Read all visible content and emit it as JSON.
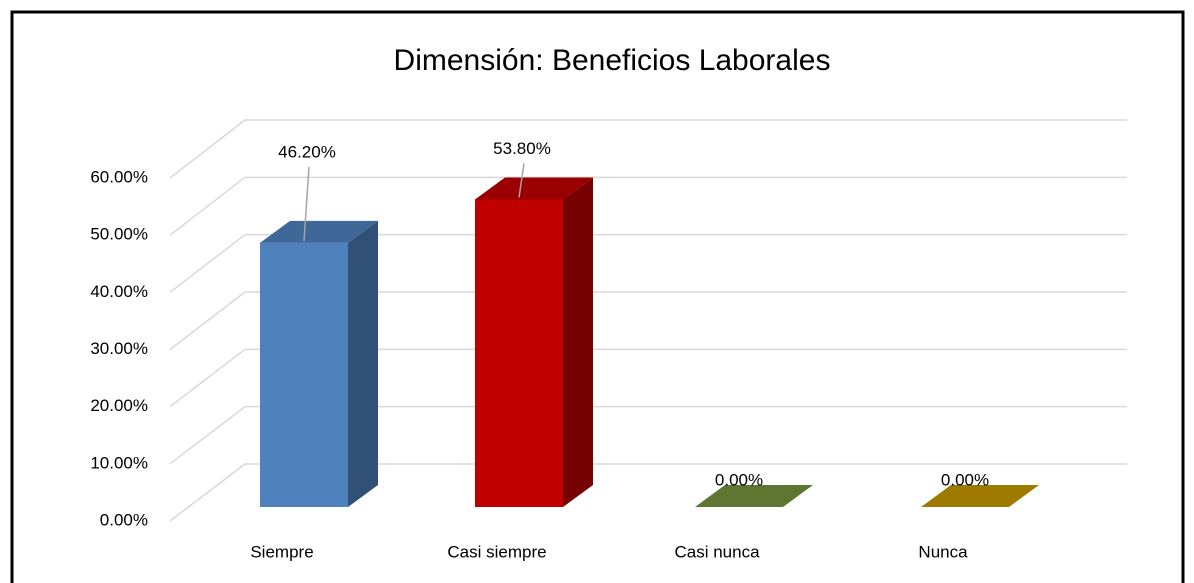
{
  "chart_data": {
    "type": "bar3d",
    "title": "Dimensión: Beneficios Laborales",
    "categories": [
      "Siempre",
      "Casi siempre",
      "Casi nunca",
      "Nunca"
    ],
    "values": [
      46.2,
      53.8,
      0,
      0
    ],
    "value_labels": [
      "46.20%",
      "53.80%",
      "0.00%",
      "0.00%"
    ],
    "colors": [
      "#4f81bd",
      "#c00000",
      "#77933c",
      "#c59a00"
    ],
    "ylim": [
      0,
      60
    ],
    "yticks": [
      {
        "value": 0,
        "label": "0.00%"
      },
      {
        "value": 10,
        "label": "10.00%"
      },
      {
        "value": 20,
        "label": "20.00%"
      },
      {
        "value": 30,
        "label": "30.00%"
      },
      {
        "value": 40,
        "label": "40.00%"
      },
      {
        "value": 50,
        "label": "50.00%"
      },
      {
        "value": 60,
        "label": "60.00%"
      }
    ],
    "grid": true
  }
}
